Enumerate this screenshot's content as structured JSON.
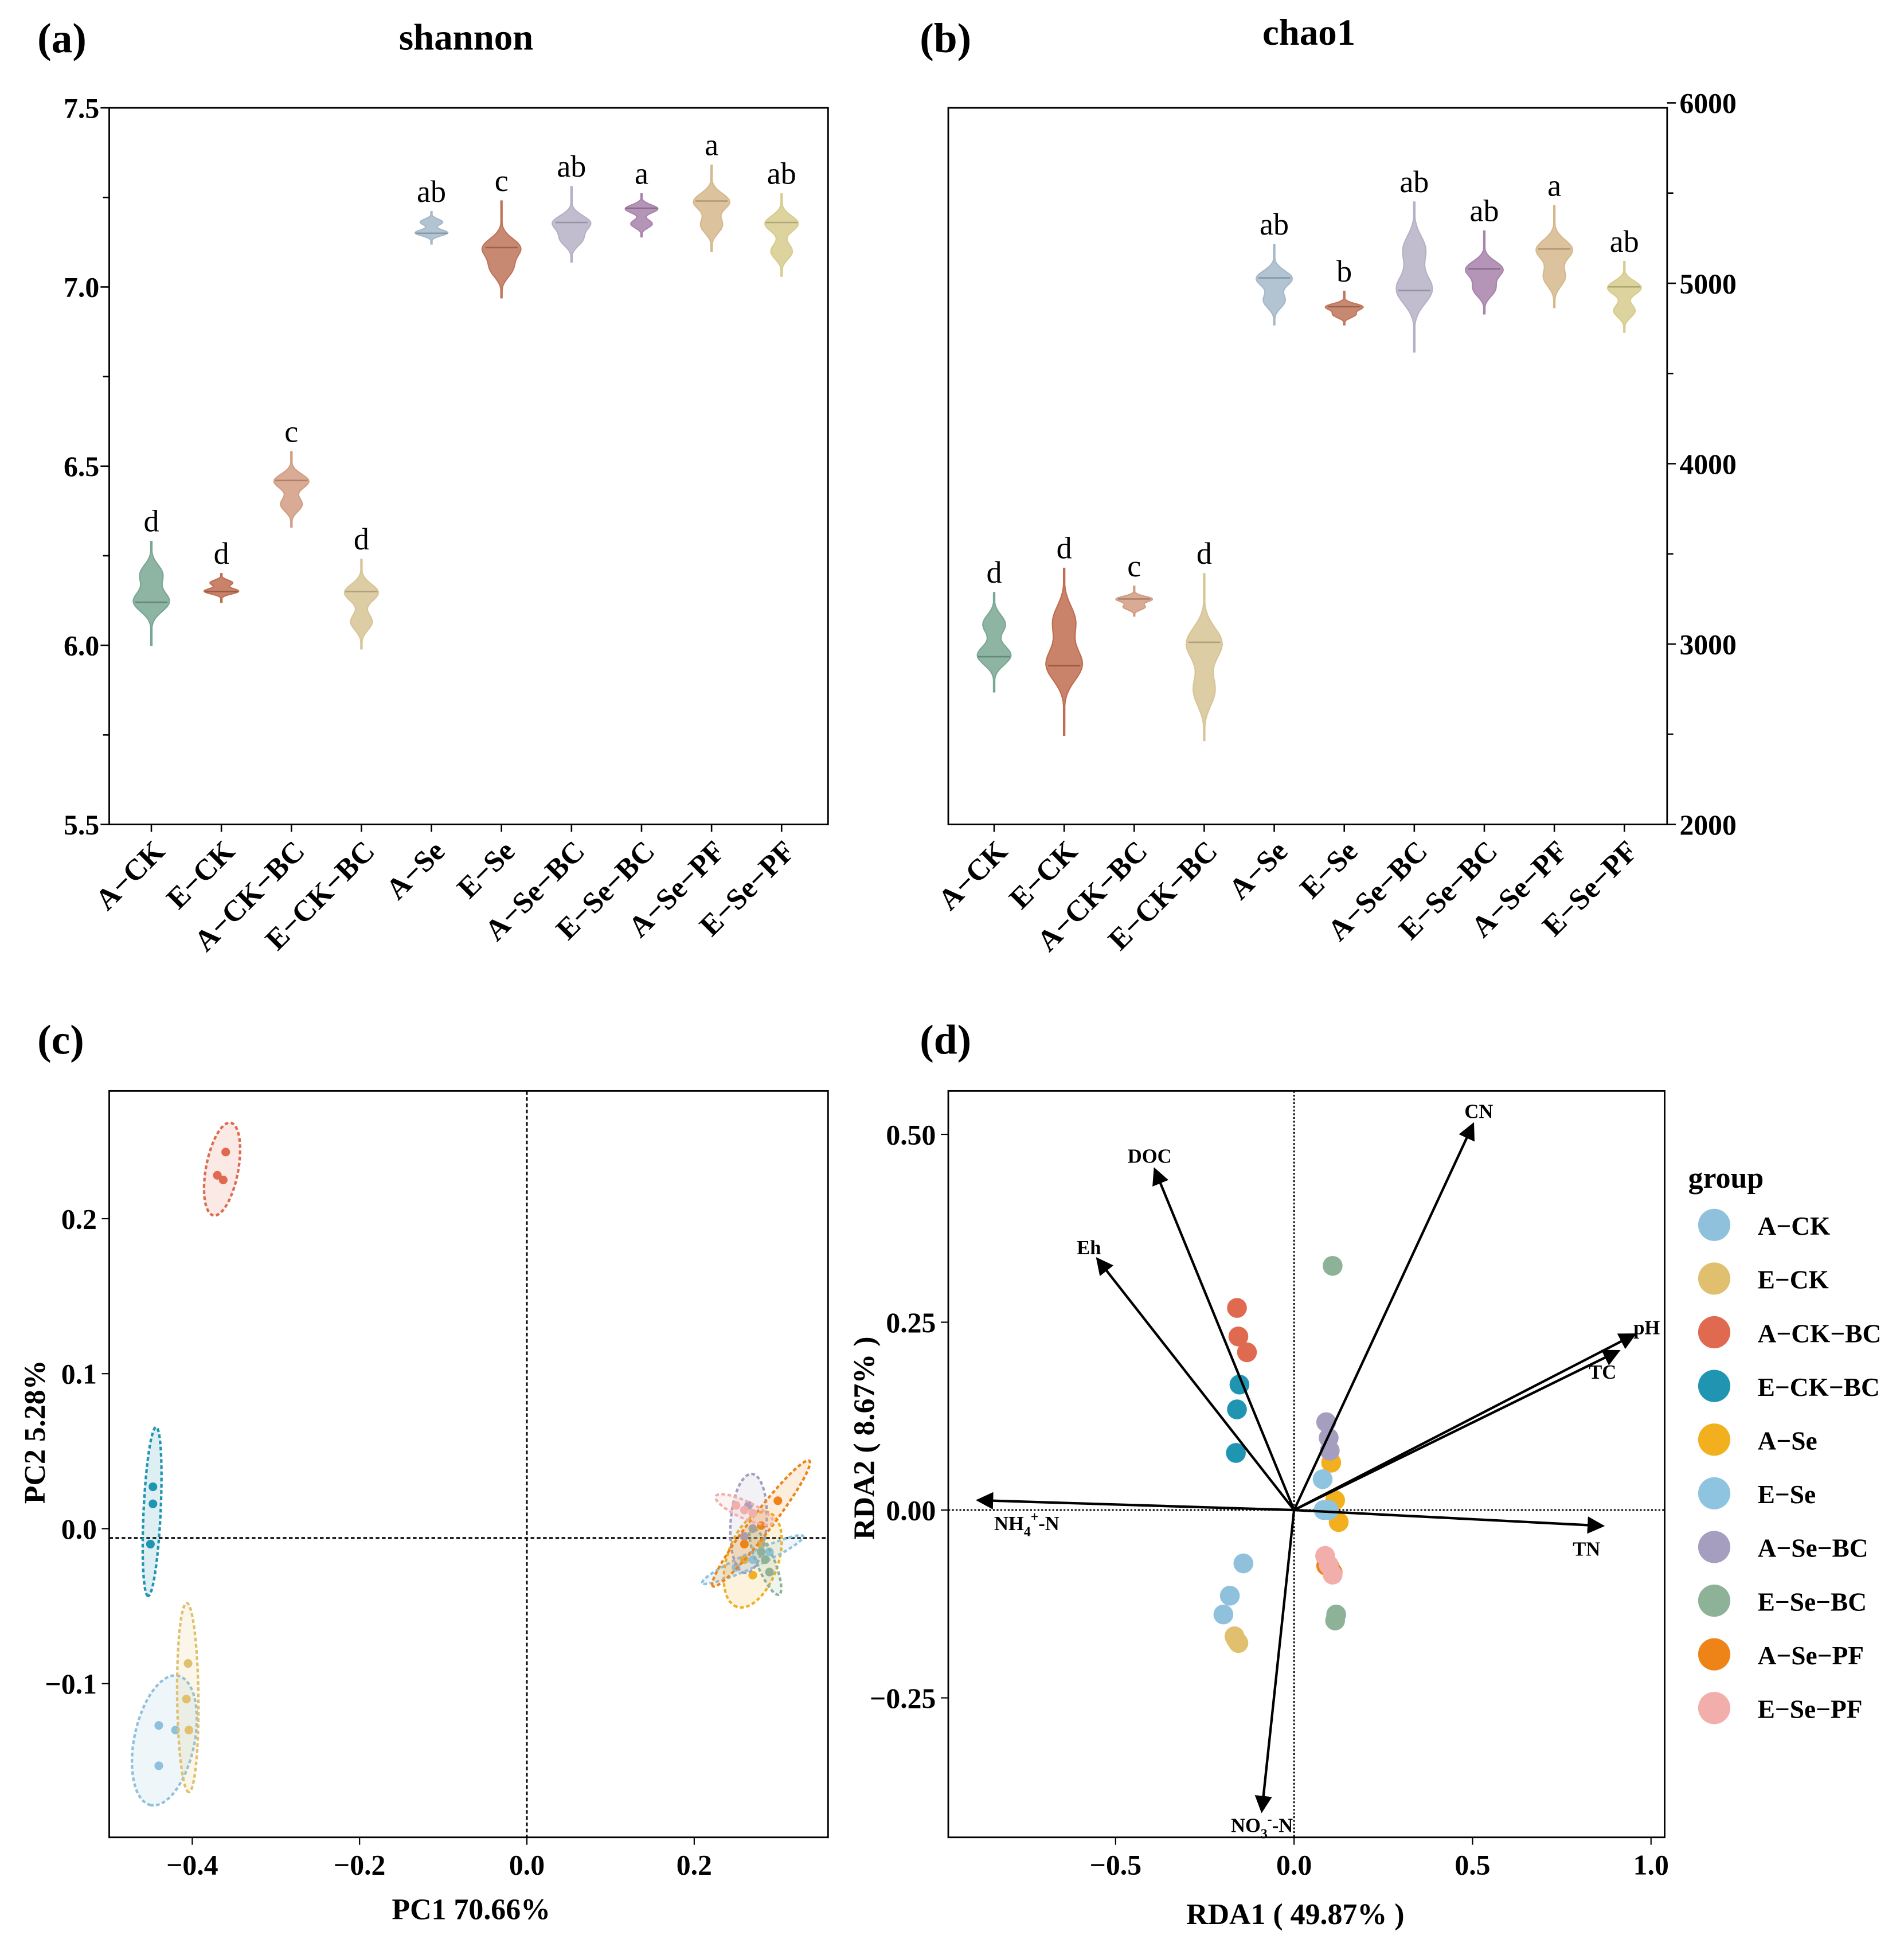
{
  "groups": [
    "A−CK",
    "E−CK",
    "A−CK−BC",
    "E−CK−BC",
    "A−Se",
    "E−Se",
    "A−Se−BC",
    "E−Se−BC",
    "A−Se−PF",
    "E−Se−PF"
  ],
  "chart_data": [
    {
      "panel": "(a)",
      "type": "violin",
      "title": "shannon",
      "ylim": [
        5.5,
        7.5
      ],
      "yticks": [
        "5.5",
        "6.0",
        "6.5",
        "7.0",
        "7.5"
      ],
      "yaxis_side": "left",
      "colors": [
        "#8fc4ad",
        "#e0805e",
        "#f7b79a",
        "#fde6b0",
        "#c2d9ec",
        "#e08a6a",
        "#d6cfe9",
        "#c69ac9",
        "#fbd9a6",
        "#fbf0a6"
      ],
      "series": [
        {
          "group": "A−CK",
          "min": 6.0,
          "max": 6.29,
          "median": 6.12,
          "letter": "d"
        },
        {
          "group": "E−CK",
          "min": 6.12,
          "max": 6.2,
          "median": 6.15,
          "letter": "d"
        },
        {
          "group": "A−CK−BC",
          "min": 6.33,
          "max": 6.54,
          "median": 6.46,
          "letter": "c"
        },
        {
          "group": "E−CK−BC",
          "min": 5.99,
          "max": 6.24,
          "median": 6.15,
          "letter": "d"
        },
        {
          "group": "A−Se",
          "min": 7.12,
          "max": 7.21,
          "median": 7.15,
          "letter": "ab"
        },
        {
          "group": "E−Se",
          "min": 6.97,
          "max": 7.24,
          "median": 7.11,
          "letter": "c"
        },
        {
          "group": "A−Se−BC",
          "min": 7.07,
          "max": 7.28,
          "median": 7.18,
          "letter": "ab"
        },
        {
          "group": "E−Se−BC",
          "min": 7.14,
          "max": 7.26,
          "median": 7.22,
          "letter": "a"
        },
        {
          "group": "A−Se−PF",
          "min": 7.1,
          "max": 7.34,
          "median": 7.24,
          "letter": "a"
        },
        {
          "group": "E−Se−PF",
          "min": 7.03,
          "max": 7.26,
          "median": 7.18,
          "letter": "ab"
        }
      ]
    },
    {
      "panel": "(b)",
      "type": "violin",
      "title": "chao1",
      "ylim": [
        2000,
        6000
      ],
      "yticks": [
        "2000",
        "3000",
        "4000",
        "5000",
        "6000"
      ],
      "yaxis_side": "right",
      "colors": [
        "#8fc4ad",
        "#e0805e",
        "#f7b79a",
        "#fde6b0",
        "#c2d9ec",
        "#e08a6a",
        "#d6cfe9",
        "#c69ac9",
        "#fbd9a6",
        "#fbf0a6"
      ],
      "series": [
        {
          "group": "A−CK",
          "min": 2735,
          "max": 3285,
          "median": 2930,
          "letter": "d"
        },
        {
          "group": "E−CK",
          "min": 2495,
          "max": 3420,
          "median": 2880,
          "letter": "d"
        },
        {
          "group": "A−CK−BC",
          "min": 3155,
          "max": 3320,
          "median": 3250,
          "letter": "c"
        },
        {
          "group": "E−CK−BC",
          "min": 2465,
          "max": 3390,
          "median": 3010,
          "letter": "d"
        },
        {
          "group": "A−Se",
          "min": 4770,
          "max": 5215,
          "median": 5030,
          "letter": "ab"
        },
        {
          "group": "E−Se",
          "min": 4770,
          "max": 4955,
          "median": 4870,
          "letter": "b"
        },
        {
          "group": "A−Se−BC",
          "min": 4620,
          "max": 5450,
          "median": 4960,
          "letter": "ab"
        },
        {
          "group": "E−Se−BC",
          "min": 4830,
          "max": 5290,
          "median": 5080,
          "letter": "ab"
        },
        {
          "group": "A−Se−PF",
          "min": 4865,
          "max": 5430,
          "median": 5190,
          "letter": "a"
        },
        {
          "group": "E−Se−PF",
          "min": 4730,
          "max": 5120,
          "median": 4980,
          "letter": "ab"
        }
      ]
    },
    {
      "panel": "(c)",
      "type": "scatter",
      "title": "",
      "xlabel": "PC1 70.66%",
      "ylabel": "PC2 5.28%",
      "xlim": [
        -0.5,
        0.36
      ],
      "ylim": [
        -0.2,
        0.28
      ],
      "xticks": [
        "-0.4",
        "-0.2",
        "0.0",
        "0.2"
      ],
      "yticks": [
        "-0.1",
        "0.0",
        "0.1",
        "0.2"
      ],
      "colors": [
        "#8fc1dd",
        "#e0c06e",
        "#df6a4f",
        "#1f95b2",
        "#f2b01e",
        "#8ec4e0",
        "#a59ebf",
        "#8db297",
        "#ee8418",
        "#f2aeaa"
      ],
      "series": [
        {
          "group": "A−CK",
          "points": [
            [
              -0.44,
              -0.127
            ],
            [
              -0.42,
              -0.13
            ],
            [
              -0.44,
              -0.153
            ]
          ]
        },
        {
          "group": "E−CK",
          "points": [
            [
              -0.405,
              -0.087
            ],
            [
              -0.407,
              -0.11
            ],
            [
              -0.404,
              -0.13
            ]
          ]
        },
        {
          "group": "A−CK−BC",
          "points": [
            [
              -0.36,
              0.243
            ],
            [
              -0.37,
              0.228
            ],
            [
              -0.363,
              0.225
            ]
          ]
        },
        {
          "group": "E−CK−BC",
          "points": [
            [
              -0.447,
              0.027
            ],
            [
              -0.447,
              0.016
            ],
            [
              -0.45,
              -0.01
            ]
          ]
        },
        {
          "group": "A−Se",
          "points": [
            [
              0.26,
              -0.02
            ],
            [
              0.27,
              -0.03
            ],
            [
              0.28,
              -0.01
            ]
          ]
        },
        {
          "group": "E−Se",
          "points": [
            [
              0.27,
              -0.02
            ],
            [
              0.29,
              -0.015
            ],
            [
              0.25,
              -0.025
            ]
          ]
        },
        {
          "group": "A−Se−BC",
          "points": [
            [
              0.265,
              0.015
            ],
            [
              0.26,
              -0.005
            ],
            [
              0.27,
              0.0
            ]
          ]
        },
        {
          "group": "E−Se−BC",
          "points": [
            [
              0.28,
              -0.015
            ],
            [
              0.29,
              -0.028
            ],
            [
              0.285,
              -0.02
            ]
          ]
        },
        {
          "group": "A−Se−PF",
          "points": [
            [
              0.3,
              0.018
            ],
            [
              0.28,
              0.002
            ],
            [
              0.26,
              -0.01
            ]
          ]
        },
        {
          "group": "E−Se−PF",
          "points": [
            [
              0.25,
              0.015
            ],
            [
              0.26,
              0.012
            ],
            [
              0.27,
              0.01
            ]
          ]
        }
      ]
    },
    {
      "panel": "(d)",
      "type": "scatter",
      "title": "",
      "xlabel": "RDA1 ( 49.87% )",
      "ylabel": "RDA2 ( 8.67% )",
      "xlim": [
        -0.97,
        1.04
      ],
      "ylim": [
        -0.44,
        0.56
      ],
      "xticks": [
        "-0.5",
        "0.0",
        "0.5",
        "1.0"
      ],
      "yticks": [
        "-0.25",
        "0.00",
        "0.25",
        "0.50"
      ],
      "legend": {
        "title": "group",
        "position": "right"
      },
      "colors": [
        "#8fc1dd",
        "#e0c06e",
        "#df6a4f",
        "#1f95b2",
        "#f2b01e",
        "#8ec4e0",
        "#a59ebf",
        "#8db297",
        "#ee8418",
        "#f2aeaa"
      ],
      "series": [
        {
          "group": "A−CK",
          "points": [
            [
              -0.142,
              -0.071
            ],
            [
              -0.18,
              -0.114
            ],
            [
              -0.198,
              -0.139
            ]
          ]
        },
        {
          "group": "E−CK",
          "points": [
            [
              -0.163,
              -0.172
            ],
            [
              -0.156,
              -0.177
            ],
            [
              -0.167,
              -0.168
            ]
          ]
        },
        {
          "group": "A−CK−BC",
          "points": [
            [
              -0.16,
              0.269
            ],
            [
              -0.156,
              0.231
            ],
            [
              -0.132,
              0.21
            ]
          ]
        },
        {
          "group": "E−CK−BC",
          "points": [
            [
              -0.153,
              0.167
            ],
            [
              -0.16,
              0.134
            ],
            [
              -0.163,
              0.076
            ]
          ]
        },
        {
          "group": "A−Se",
          "points": [
            [
              0.104,
              0.063
            ],
            [
              0.115,
              0.013
            ],
            [
              0.125,
              -0.016
            ]
          ]
        },
        {
          "group": "E−Se",
          "points": [
            [
              0.08,
              0.041
            ],
            [
              0.083,
              0.0
            ],
            [
              0.097,
              0.0
            ]
          ]
        },
        {
          "group": "A−Se−BC",
          "points": [
            [
              0.09,
              0.117
            ],
            [
              0.097,
              0.096
            ],
            [
              0.1,
              0.079
            ]
          ]
        },
        {
          "group": "E−Se−BC",
          "points": [
            [
              0.108,
              0.325
            ],
            [
              0.118,
              -0.139
            ],
            [
              0.115,
              -0.147
            ]
          ]
        },
        {
          "group": "A−Se−PF",
          "points": [
            [
              0.09,
              -0.074
            ],
            [
              0.108,
              -0.083
            ],
            [
              0.1,
              -0.076
            ]
          ]
        },
        {
          "group": "E−Se−PF",
          "points": [
            [
              0.087,
              -0.061
            ],
            [
              0.097,
              -0.073
            ],
            [
              0.108,
              -0.086
            ]
          ]
        }
      ],
      "arrows": [
        {
          "label": "CN",
          "x": 0.5,
          "y": 0.512
        },
        {
          "label": "DOC",
          "x": -0.389,
          "y": 0.452
        },
        {
          "label": "Eh",
          "x": -0.549,
          "y": 0.333
        },
        {
          "label": "pH",
          "x": 0.951,
          "y": 0.233
        },
        {
          "label": "TC",
          "x": 0.906,
          "y": 0.211
        },
        {
          "label": "TN",
          "x": 0.861,
          "y": -0.021
        },
        {
          "label": "NH4+-N",
          "x": -0.882,
          "y": 0.013
        },
        {
          "label": "NO3--N",
          "x": -0.09,
          "y": -0.399
        }
      ]
    }
  ]
}
